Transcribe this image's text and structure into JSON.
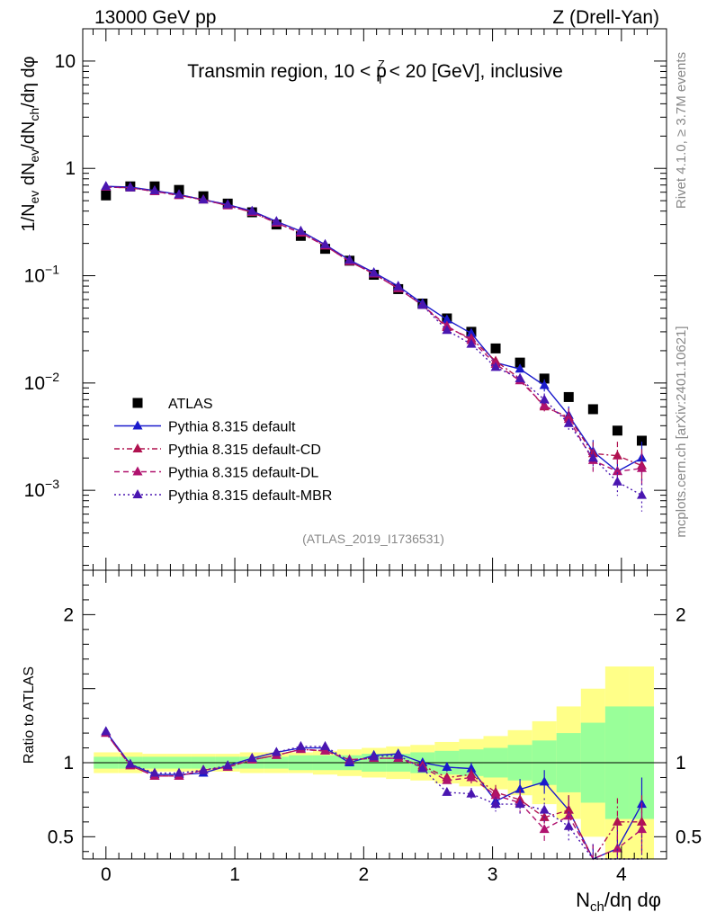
{
  "header": {
    "energy_label": "13000 GeV pp",
    "process_label": "Z (Drell-Yan)"
  },
  "side_labels": {
    "rivet": "Rivet 4.1.0, ≥ 3.7M events",
    "mcplots": "mcplots.cern.ch [arXiv:2401.10621]"
  },
  "colors": {
    "atlas": "#000000",
    "default": "#1a1acc",
    "cd": "#b0124f",
    "dl": "#b0126e",
    "mbr": "#4a16b0",
    "band_inner": "#99ff99",
    "band_outer": "#ffff88"
  },
  "chart_data": [
    {
      "type": "scatter",
      "panel": "main",
      "title": "Transmin region, 10 < p_T^Z < 20 [GeV], inclusive",
      "title_parts": {
        "pre": "Transmin region, 10 < p",
        "sup": "Z",
        "sub": "T",
        "post": " < 20 [GeV], inclusive"
      },
      "analysis_tag": "(ATLAS_2019_I1736531)",
      "ylabel": "1/N_ev dN_ev/dN_ch/dη dφ",
      "yscale": "log",
      "ylim": [
        0.00018,
        20
      ],
      "xlim": [
        -0.18,
        4.35
      ],
      "yticks": [
        {
          "v": 10,
          "label": "10"
        },
        {
          "v": 1,
          "label": "1"
        },
        {
          "v": 0.1,
          "label": "10",
          "exp": "−1"
        },
        {
          "v": 0.01,
          "label": "10",
          "exp": "−2"
        },
        {
          "v": 0.001,
          "label": "10",
          "exp": "−3"
        }
      ],
      "legend_position": "lower-left",
      "x": [
        0.0,
        0.189,
        0.378,
        0.567,
        0.756,
        0.945,
        1.134,
        1.323,
        1.512,
        1.701,
        1.89,
        2.079,
        2.268,
        2.457,
        2.646,
        2.835,
        3.024,
        3.213,
        3.402,
        3.591,
        3.78,
        3.969,
        4.158
      ],
      "series": [
        {
          "name": "ATLAS",
          "key": "atlas",
          "style": "square",
          "values": [
            0.56,
            0.68,
            0.68,
            0.63,
            0.55,
            0.47,
            0.39,
            0.3,
            0.235,
            0.178,
            0.138,
            0.102,
            0.075,
            0.055,
            0.04,
            0.03,
            0.021,
            0.0155,
            0.011,
            0.0074,
            0.0057,
            0.0036,
            0.0029
          ]
        },
        {
          "name": "Pythia 8.315 default",
          "key": "default",
          "style": "solid",
          "values": [
            0.68,
            0.67,
            0.62,
            0.57,
            0.51,
            0.46,
            0.4,
            0.32,
            0.26,
            0.195,
            0.14,
            0.107,
            0.08,
            0.055,
            0.039,
            0.029,
            0.0155,
            0.0135,
            0.0095,
            0.005,
            0.0023,
            0.0015,
            0.002
          ]
        },
        {
          "name": "Pythia 8.315 default-CD",
          "key": "cd",
          "style": "dashdot",
          "values": [
            0.67,
            0.66,
            0.61,
            0.56,
            0.51,
            0.45,
            0.39,
            0.31,
            0.25,
            0.19,
            0.136,
            0.104,
            0.076,
            0.053,
            0.033,
            0.026,
            0.016,
            0.011,
            0.006,
            0.0048,
            0.0022,
            0.0021,
            0.0017
          ]
        },
        {
          "name": "Pythia 8.315 default-DL",
          "key": "dl",
          "style": "dashed",
          "values": [
            0.67,
            0.66,
            0.61,
            0.56,
            0.51,
            0.45,
            0.39,
            0.31,
            0.25,
            0.19,
            0.136,
            0.104,
            0.076,
            0.053,
            0.034,
            0.025,
            0.015,
            0.0105,
            0.0062,
            0.0046,
            0.0019,
            0.0015,
            0.0016
          ]
        },
        {
          "name": "Pythia 8.315 default-MBR",
          "key": "mbr",
          "style": "dotted",
          "values": [
            0.68,
            0.66,
            0.62,
            0.57,
            0.51,
            0.46,
            0.4,
            0.32,
            0.26,
            0.195,
            0.14,
            0.106,
            0.079,
            0.053,
            0.031,
            0.023,
            0.014,
            0.011,
            0.007,
            0.0042,
            0.002,
            0.0012,
            0.0009
          ]
        }
      ]
    },
    {
      "type": "line",
      "panel": "ratio",
      "ylabel": "Ratio to ATLAS",
      "xlabel": "N_ch/dη dφ",
      "ylim": [
        0.35,
        2.3
      ],
      "xlim": [
        -0.18,
        4.35
      ],
      "yticks": [
        {
          "v": 0.5,
          "label": "0.5"
        },
        {
          "v": 1,
          "label": "1"
        },
        {
          "v": 2,
          "label": "2"
        }
      ],
      "xticks": [
        0,
        1,
        2,
        3,
        4
      ],
      "band": {
        "inner": [
          0.04,
          0.04,
          0.04,
          0.04,
          0.04,
          0.04,
          0.04,
          0.04,
          0.05,
          0.05,
          0.05,
          0.06,
          0.06,
          0.07,
          0.08,
          0.09,
          0.1,
          0.12,
          0.15,
          0.2,
          0.27,
          0.38,
          0.38
        ],
        "outer": [
          0.07,
          0.07,
          0.06,
          0.06,
          0.06,
          0.06,
          0.07,
          0.07,
          0.07,
          0.08,
          0.09,
          0.1,
          0.11,
          0.12,
          0.14,
          0.16,
          0.18,
          0.22,
          0.28,
          0.38,
          0.5,
          0.65,
          0.65
        ]
      },
      "series": [
        {
          "name": "Pythia 8.315 default",
          "key": "default",
          "style": "solid",
          "values": [
            1.21,
            0.99,
            0.92,
            0.92,
            0.93,
            0.98,
            1.03,
            1.07,
            1.1,
            1.1,
            1.0,
            1.05,
            1.06,
            1.0,
            0.97,
            0.96,
            0.74,
            0.82,
            0.87,
            0.68,
            0.33,
            0.42,
            0.72
          ],
          "errors": [
            0.01,
            0.01,
            0.01,
            0.01,
            0.01,
            0.01,
            0.01,
            0.01,
            0.01,
            0.01,
            0.02,
            0.02,
            0.02,
            0.03,
            0.03,
            0.04,
            0.05,
            0.07,
            0.08,
            0.1,
            0.12,
            0.16,
            0.18
          ]
        },
        {
          "name": "Pythia 8.315 default-CD",
          "key": "cd",
          "style": "dashdot",
          "values": [
            1.2,
            0.98,
            0.91,
            0.91,
            0.95,
            0.97,
            1.02,
            1.05,
            1.09,
            1.08,
            1.02,
            1.03,
            1.03,
            0.98,
            0.9,
            0.92,
            0.8,
            0.75,
            0.63,
            0.68,
            0.33,
            0.6,
            0.6
          ],
          "errors": [
            0.01,
            0.01,
            0.01,
            0.01,
            0.01,
            0.01,
            0.01,
            0.01,
            0.01,
            0.01,
            0.02,
            0.02,
            0.02,
            0.03,
            0.03,
            0.04,
            0.05,
            0.07,
            0.08,
            0.1,
            0.12,
            0.16,
            0.18
          ]
        },
        {
          "name": "Pythia 8.315 default-DL",
          "key": "dl",
          "style": "dashed",
          "values": [
            1.2,
            0.98,
            0.91,
            0.91,
            0.95,
            0.97,
            1.02,
            1.05,
            1.09,
            1.08,
            1.02,
            1.03,
            1.03,
            0.97,
            0.88,
            0.9,
            0.78,
            0.73,
            0.55,
            0.64,
            0.33,
            0.42,
            0.55
          ],
          "errors": [
            0.01,
            0.01,
            0.01,
            0.01,
            0.01,
            0.01,
            0.01,
            0.01,
            0.01,
            0.01,
            0.02,
            0.02,
            0.02,
            0.03,
            0.03,
            0.04,
            0.05,
            0.07,
            0.08,
            0.1,
            0.12,
            0.16,
            0.18
          ]
        },
        {
          "name": "Pythia 8.315 default-MBR",
          "key": "mbr",
          "style": "dotted",
          "values": [
            1.21,
            0.99,
            0.93,
            0.93,
            0.95,
            0.98,
            1.03,
            1.07,
            1.11,
            1.11,
            1.01,
            1.04,
            1.05,
            0.96,
            0.8,
            0.79,
            0.72,
            0.72,
            0.68,
            0.57,
            0.33,
            0.32,
            0.33
          ],
          "errors": [
            0.01,
            0.01,
            0.01,
            0.01,
            0.01,
            0.01,
            0.01,
            0.01,
            0.01,
            0.01,
            0.02,
            0.02,
            0.02,
            0.03,
            0.03,
            0.04,
            0.05,
            0.07,
            0.08,
            0.1,
            0.12,
            0.16,
            0.18
          ]
        }
      ]
    }
  ]
}
